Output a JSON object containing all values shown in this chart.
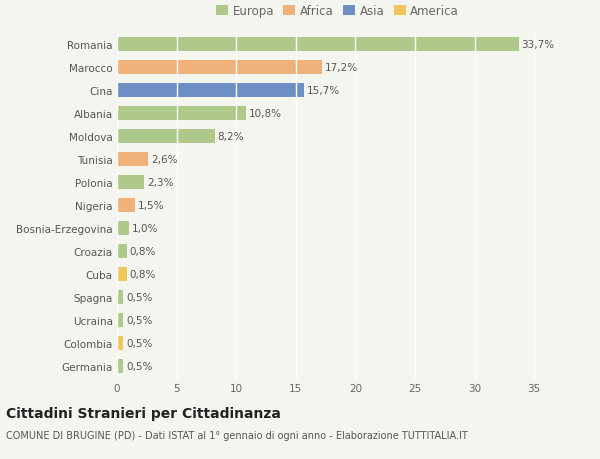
{
  "categories": [
    "Romania",
    "Marocco",
    "Cina",
    "Albania",
    "Moldova",
    "Tunisia",
    "Polonia",
    "Nigeria",
    "Bosnia-Erzegovina",
    "Croazia",
    "Cuba",
    "Spagna",
    "Ucraina",
    "Colombia",
    "Germania"
  ],
  "values": [
    33.7,
    17.2,
    15.7,
    10.8,
    8.2,
    2.6,
    2.3,
    1.5,
    1.0,
    0.8,
    0.8,
    0.5,
    0.5,
    0.5,
    0.5
  ],
  "labels": [
    "33,7%",
    "17,2%",
    "15,7%",
    "10,8%",
    "8,2%",
    "2,6%",
    "2,3%",
    "1,5%",
    "1,0%",
    "0,8%",
    "0,8%",
    "0,5%",
    "0,5%",
    "0,5%",
    "0,5%"
  ],
  "colors": [
    "#aec98a",
    "#f0b07a",
    "#6e8fc4",
    "#aec98a",
    "#aec98a",
    "#f0b07a",
    "#aec98a",
    "#f0b07a",
    "#aec98a",
    "#aec98a",
    "#f0c85a",
    "#aec98a",
    "#aec98a",
    "#f0c85a",
    "#aec98a"
  ],
  "legend": [
    {
      "label": "Europa",
      "color": "#aec98a"
    },
    {
      "label": "Africa",
      "color": "#f0b07a"
    },
    {
      "label": "Asia",
      "color": "#6e8fc4"
    },
    {
      "label": "America",
      "color": "#f0c85a"
    }
  ],
  "xlim": [
    0,
    37
  ],
  "xticks": [
    0,
    5,
    10,
    15,
    20,
    25,
    30,
    35
  ],
  "title": "Cittadini Stranieri per Cittadinanza",
  "subtitle": "COMUNE DI BRUGINE (PD) - Dati ISTAT al 1° gennaio di ogni anno - Elaborazione TUTTITALIA.IT",
  "bg_color": "#f5f5f0",
  "grid_color": "#ffffff",
  "bar_height": 0.62,
  "label_fontsize": 7.5,
  "tick_fontsize": 7.5,
  "title_fontsize": 10,
  "subtitle_fontsize": 7
}
